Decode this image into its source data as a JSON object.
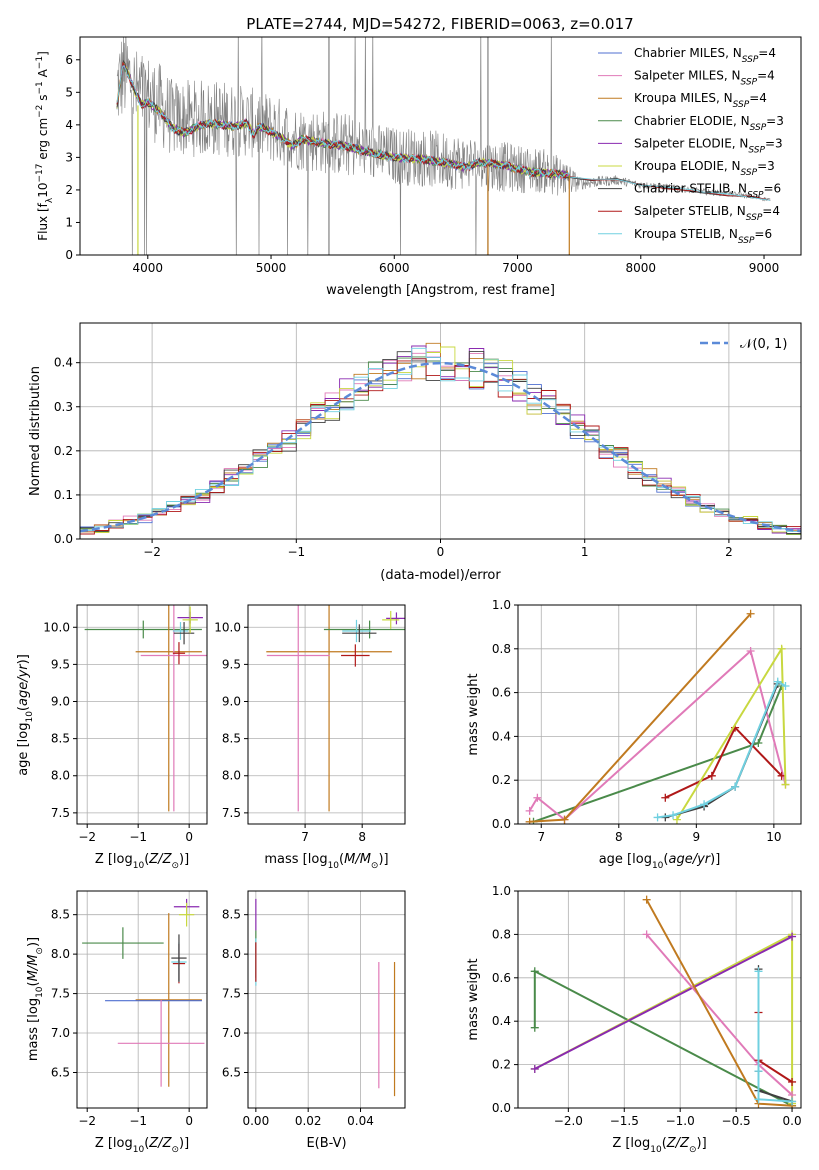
{
  "figure_title": "PLATE=2744, MJD=54272, FIBERID=0063, z=0.017",
  "colors": {
    "chabrier_miles": "#4f6fd0",
    "salpeter_miles": "#e07ab8",
    "kroupa_miles": "#c07a20",
    "chabrier_elodie": "#4a8a4a",
    "salpeter_elodie": "#8a2ab0",
    "kroupa_elodie": "#c8d840",
    "chabrier_stelib": "#404040",
    "salpeter_stelib": "#b01818",
    "kroupa_stelib": "#70d0e0",
    "gaussian": "#5b8ad8",
    "observed": "#808080",
    "grid": "#b0b0b0"
  },
  "chart_data": [
    {
      "id": "spectrum",
      "type": "line",
      "title": "PLATE=2744, MJD=54272, FIBERID=0063, z=0.017",
      "xlabel": "wavelength [Angstrom, rest frame]",
      "ylabel": "Flux [f_λ 10^-17 erg cm^-2 s^-1 A^-1]",
      "xlim": [
        3450,
        9300
      ],
      "ylim": [
        0,
        6.7
      ],
      "xticks": [
        4000,
        5000,
        6000,
        7000,
        8000,
        9000
      ],
      "yticks": [
        0,
        1,
        2,
        3,
        4,
        5,
        6
      ],
      "grid": false,
      "legend_position": "top-right",
      "legend": [
        {
          "label": "Chabrier MILES, N",
          "sub": "SSP",
          "tail": "=4",
          "color_key": "chabrier_miles"
        },
        {
          "label": "Salpeter MILES, N",
          "sub": "SSP",
          "tail": "=4",
          "color_key": "salpeter_miles"
        },
        {
          "label": "Kroupa MILES, N",
          "sub": "SSP",
          "tail": "=4",
          "color_key": "kroupa_miles"
        },
        {
          "label": "Chabrier ELODIE, N",
          "sub": "SSP",
          "tail": "=3",
          "color_key": "chabrier_elodie"
        },
        {
          "label": "Salpeter ELODIE, N",
          "sub": "SSP",
          "tail": "=3",
          "color_key": "salpeter_elodie"
        },
        {
          "label": "Kroupa ELODIE, N",
          "sub": "SSP",
          "tail": "=3",
          "color_key": "kroupa_elodie"
        },
        {
          "label": "Chabrier STELIB, N",
          "sub": "SSP",
          "tail": "=6",
          "color_key": "chabrier_stelib"
        },
        {
          "label": "Salpeter STELIB, N",
          "sub": "SSP",
          "tail": "=4",
          "color_key": "salpeter_stelib"
        },
        {
          "label": "Kroupa STELIB, N",
          "sub": "SSP",
          "tail": "=6",
          "color_key": "kroupa_stelib"
        }
      ],
      "observed_envelope": {
        "x": [
          3750,
          3800,
          3850,
          3900,
          4000,
          4100,
          4200,
          4400,
          4600,
          4800,
          5000,
          5200,
          5400,
          5600,
          5800,
          6000,
          6200,
          6400,
          6600,
          6800,
          7000,
          7200,
          7400,
          7500,
          7800,
          8000,
          8200,
          8500,
          8800,
          9050
        ],
        "y": [
          5.1,
          5.6,
          5.4,
          5.0,
          4.9,
          4.6,
          4.2,
          4.2,
          4.2,
          4.1,
          3.9,
          3.6,
          3.5,
          3.4,
          3.2,
          3.05,
          3.0,
          2.9,
          2.85,
          2.75,
          2.65,
          2.6,
          2.35,
          2.2,
          2.3,
          2.15,
          2.1,
          1.95,
          1.85,
          1.7
        ],
        "noise": [
          1.4,
          1.5,
          1.5,
          1.4,
          1.3,
          1.3,
          1.2,
          1.2,
          1.2,
          1.1,
          1.1,
          1.0,
          1.0,
          1.0,
          0.9,
          0.9,
          0.9,
          0.9,
          0.85,
          0.8,
          0.75,
          0.7,
          0.6,
          0.2,
          0.15,
          0.12,
          0.1,
          0.1,
          0.08,
          0.06
        ]
      },
      "model_x": [
        3750,
        3800,
        3850,
        3900,
        3950,
        4000,
        4100,
        4200,
        4300,
        4400,
        4500,
        4600,
        4700,
        4800,
        4860,
        4900,
        5000,
        5100,
        5175,
        5250,
        5400,
        5600,
        5800,
        6000,
        6200,
        6400,
        6563,
        6700,
        6900,
        7100,
        7300,
        7420
      ],
      "model_y": [
        4.6,
        5.9,
        5.5,
        5.0,
        4.6,
        4.7,
        4.4,
        3.9,
        3.75,
        3.95,
        4.05,
        4.0,
        3.95,
        4.05,
        3.7,
        3.95,
        3.8,
        3.55,
        3.35,
        3.55,
        3.45,
        3.35,
        3.15,
        3.0,
        2.95,
        2.85,
        2.7,
        2.85,
        2.75,
        2.55,
        2.5,
        2.45
      ],
      "stelib_extension_x": [
        7420,
        7600,
        7800,
        8000,
        8200,
        8400,
        8500,
        8700,
        8900,
        9050
      ],
      "stelib_extension_y": [
        2.4,
        2.3,
        2.35,
        2.15,
        2.05,
        2.0,
        1.9,
        1.85,
        1.8,
        1.7
      ]
    },
    {
      "id": "residuals",
      "type": "line",
      "xlabel": "(data-model)/error",
      "ylabel": "Normed distribution",
      "xlim": [
        -2.5,
        2.5
      ],
      "ylim": [
        0,
        0.49
      ],
      "xticks": [
        -2,
        -1,
        0,
        1,
        2
      ],
      "yticks": [
        0.0,
        0.1,
        0.2,
        0.3,
        0.4
      ],
      "grid": true,
      "legend_position": "top-right",
      "legend": [
        {
          "label": "𝒩(0, 1)",
          "color_key": "gaussian",
          "dashed": true
        }
      ],
      "bin_width": 0.1,
      "bin_start": -2.5
    },
    {
      "id": "z-age",
      "type": "scatter",
      "xlabel": "Z [log10(Z/Z⊙)]",
      "ylabel": "age  [log10(age/yr)]",
      "xlim": [
        -2.2,
        0.35
      ],
      "ylim": [
        7.35,
        10.3
      ],
      "xticks": [
        -2,
        -1,
        0
      ],
      "yticks": [
        7.5,
        8.0,
        8.5,
        9.0,
        9.5,
        10.0
      ],
      "grid": true,
      "crosses": [
        {
          "color_key": "chabrier_elodie",
          "x": -0.9,
          "xerr": 1.15,
          "y": 9.97,
          "yerr": 0.12
        },
        {
          "color_key": "kroupa_miles",
          "x": -0.4,
          "xerr": 0.65,
          "y": 9.67,
          "yerr": 2.15
        },
        {
          "color_key": "salpeter_miles",
          "x": -0.3,
          "xerr": 0.65,
          "y": 9.62,
          "yerr": 2.1
        },
        {
          "color_key": "salpeter_stelib",
          "x": -0.2,
          "xerr": 0.12,
          "y": 9.65,
          "yerr": 0.15
        },
        {
          "color_key": "kroupa_stelib",
          "x": -0.17,
          "xerr": 0.15,
          "y": 9.95,
          "yerr": 0.12
        },
        {
          "color_key": "chabrier_stelib",
          "x": -0.1,
          "xerr": 0.2,
          "y": 9.92,
          "yerr": 0.15
        },
        {
          "color_key": "salpeter_elodie",
          "x": 0.02,
          "xerr": 0.25,
          "y": 10.13,
          "yerr": 0.08
        },
        {
          "color_key": "kroupa_elodie",
          "x": 0.02,
          "xerr": 0.15,
          "y": 10.1,
          "yerr": 0.18
        }
      ]
    },
    {
      "id": "mass-age",
      "type": "scatter",
      "xlabel": "mass [log10(M/M⊙)]",
      "ylabel": "",
      "xlim": [
        6.0,
        8.75
      ],
      "ylim": [
        7.35,
        10.3
      ],
      "xticks": [
        7,
        8
      ],
      "yticks": [
        7.5,
        8.0,
        8.5,
        9.0,
        9.5,
        10.0
      ],
      "grid": true,
      "crosses": [
        {
          "color_key": "kroupa_miles",
          "x": 7.42,
          "xerr": 1.1,
          "y": 9.67,
          "yerr": 2.15
        },
        {
          "color_key": "salpeter_miles",
          "x": 6.88,
          "xerr": 0.55,
          "y": 9.62,
          "yerr": 2.1
        },
        {
          "color_key": "salpeter_stelib",
          "x": 7.88,
          "xerr": 0.25,
          "y": 9.62,
          "yerr": 0.15
        },
        {
          "color_key": "chabrier_elodie",
          "x": 8.13,
          "xerr": 0.8,
          "y": 9.97,
          "yerr": 0.12
        },
        {
          "color_key": "kroupa_stelib",
          "x": 7.9,
          "xerr": 0.25,
          "y": 9.95,
          "yerr": 0.15
        },
        {
          "color_key": "chabrier_stelib",
          "x": 7.95,
          "xerr": 0.3,
          "y": 9.92,
          "yerr": 0.12
        },
        {
          "color_key": "salpeter_elodie",
          "x": 8.6,
          "xerr": 0.18,
          "y": 10.12,
          "yerr": 0.08
        },
        {
          "color_key": "kroupa_elodie",
          "x": 8.5,
          "xerr": 0.15,
          "y": 10.1,
          "yerr": 0.12
        }
      ]
    },
    {
      "id": "weight-age",
      "type": "line",
      "xlabel": "age  [log10(age/yr)]",
      "ylabel": "mass weight",
      "xlim": [
        6.7,
        10.35
      ],
      "ylim": [
        0.0,
        1.0
      ],
      "xticks": [
        7,
        8,
        9,
        10
      ],
      "yticks": [
        0.0,
        0.2,
        0.4,
        0.6,
        0.8,
        1.0
      ],
      "grid": true,
      "series": [
        {
          "color_key": "chabrier_elodie",
          "x": [
            6.9,
            9.8,
            10.1
          ],
          "y": [
            0.01,
            0.37,
            0.63
          ]
        },
        {
          "color_key": "salpeter_miles",
          "x": [
            6.85,
            6.95,
            7.3,
            9.7,
            10.15
          ],
          "y": [
            0.06,
            0.12,
            0.02,
            0.79,
            0.18
          ]
        },
        {
          "color_key": "kroupa_miles",
          "x": [
            6.85,
            7.3,
            9.7
          ],
          "y": [
            0.01,
            0.02,
            0.96
          ]
        },
        {
          "color_key": "salpeter_stelib",
          "x": [
            8.6,
            9.2,
            9.5,
            10.1
          ],
          "y": [
            0.12,
            0.22,
            0.44,
            0.22
          ]
        },
        {
          "color_key": "kroupa_elodie",
          "x": [
            8.75,
            10.1,
            10.15
          ],
          "y": [
            0.02,
            0.8,
            0.18
          ]
        },
        {
          "color_key": "chabrier_stelib",
          "x": [
            8.6,
            9.1,
            9.5,
            10.05
          ],
          "y": [
            0.03,
            0.08,
            0.17,
            0.64
          ]
        },
        {
          "color_key": "kroupa_stelib",
          "x": [
            8.5,
            8.7,
            9.1,
            9.5,
            10.05,
            10.15
          ],
          "y": [
            0.03,
            0.04,
            0.09,
            0.17,
            0.65,
            0.63
          ]
        }
      ]
    },
    {
      "id": "z-mass",
      "type": "scatter",
      "xlabel": "Z [log10(Z/Z⊙)]",
      "ylabel": "mass [log10(M/M⊙)]",
      "xlim": [
        -2.2,
        0.35
      ],
      "ylim": [
        6.05,
        8.8
      ],
      "xticks": [
        -2,
        -1,
        0
      ],
      "yticks": [
        6.5,
        7.0,
        7.5,
        8.0,
        8.5
      ],
      "grid": true,
      "crosses": [
        {
          "color_key": "chabrier_elodie",
          "x": -1.3,
          "xerr": 0.8,
          "y": 8.14,
          "yerr": 0.2
        },
        {
          "color_key": "kroupa_miles",
          "x": -0.4,
          "xerr": 0.65,
          "y": 7.42,
          "yerr": 1.1
        },
        {
          "color_key": "chabrier_miles",
          "x": -0.7,
          "xerr": 0.95,
          "y": 7.41,
          "yerr": 0.0
        },
        {
          "color_key": "salpeter_miles",
          "x": -0.55,
          "xerr": 0.85,
          "y": 6.87,
          "yerr": 0.55
        },
        {
          "color_key": "salpeter_stelib",
          "x": -0.2,
          "xerr": 0.12,
          "y": 7.88,
          "yerr": 0.25
        },
        {
          "color_key": "kroupa_stelib",
          "x": -0.2,
          "xerr": 0.15,
          "y": 7.9,
          "yerr": 0.25
        },
        {
          "color_key": "chabrier_stelib",
          "x": -0.2,
          "xerr": 0.15,
          "y": 7.95,
          "yerr": 0.3
        },
        {
          "color_key": "salpeter_elodie",
          "x": -0.05,
          "xerr": 0.25,
          "y": 8.6,
          "yerr": 0.1
        },
        {
          "color_key": "kroupa_elodie",
          "x": -0.05,
          "xerr": 0.15,
          "y": 8.5,
          "yerr": 0.15
        }
      ]
    },
    {
      "id": "ebv-mass",
      "type": "scatter",
      "xlabel": "E(B-V)",
      "ylabel": "",
      "xlim": [
        -0.003,
        0.057
      ],
      "ylim": [
        6.05,
        8.8
      ],
      "xticks": [
        0.0,
        0.02,
        0.04
      ],
      "xticklabels": [
        "0.00",
        "0.02",
        "0.04"
      ],
      "yticks": [
        6.5,
        7.0,
        7.5,
        8.0,
        8.5
      ],
      "grid": true,
      "crosses": [
        {
          "color_key": "kroupa_miles",
          "x": 0.053,
          "xerr": 0.0,
          "y": 7.05,
          "yerr": 0.85
        },
        {
          "color_key": "salpeter_miles",
          "x": 0.047,
          "xerr": 0.0,
          "y": 7.1,
          "yerr": 0.8
        },
        {
          "color_key": "chabrier_elodie",
          "x": 0.0,
          "xerr": 0.0,
          "y": 8.0,
          "yerr": 0.3
        },
        {
          "color_key": "salpeter_elodie",
          "x": 0.0,
          "xerr": 0.0,
          "y": 8.5,
          "yerr": 0.2
        },
        {
          "color_key": "kroupa_stelib",
          "x": 0.0,
          "xerr": 0.0,
          "y": 7.9,
          "yerr": 0.3
        },
        {
          "color_key": "salpeter_stelib",
          "x": 0.0,
          "xerr": 0.0,
          "y": 7.9,
          "yerr": 0.25
        }
      ]
    },
    {
      "id": "weight-z",
      "type": "line",
      "xlabel": "Z [log10(Z/Z⊙)]",
      "ylabel": "mass weight",
      "xlim": [
        -2.45,
        0.08
      ],
      "ylim": [
        0.0,
        1.0
      ],
      "xticks": [
        -2.0,
        -1.5,
        -1.0,
        -0.5,
        0.0
      ],
      "yticks": [
        0.0,
        0.2,
        0.4,
        0.6,
        0.8,
        1.0
      ],
      "grid": true,
      "series": [
        {
          "color_key": "chabrier_elodie",
          "x": [
            -2.3,
            -2.3,
            0.0
          ],
          "y": [
            0.37,
            0.63,
            0.01
          ]
        },
        {
          "color_key": "kroupa_elodie",
          "x": [
            -2.3,
            0.0,
            0.0
          ],
          "y": [
            0.18,
            0.8,
            0.02
          ]
        },
        {
          "color_key": "salpeter_elodie",
          "x": [
            -2.3,
            0.0
          ],
          "y": [
            0.18,
            0.79
          ]
        },
        {
          "color_key": "salpeter_miles",
          "x": [
            -1.3,
            -0.3,
            0.0
          ],
          "y": [
            0.8,
            0.2,
            0.06
          ]
        },
        {
          "color_key": "kroupa_miles",
          "x": [
            -1.3,
            -0.3,
            0.0
          ],
          "y": [
            0.96,
            0.02,
            0.01
          ]
        },
        {
          "color_key": "salpeter_stelib",
          "x": [
            -0.3,
            -0.3,
            0.0
          ],
          "y": [
            0.44,
            0.22,
            0.12
          ]
        },
        {
          "color_key": "chabrier_stelib",
          "x": [
            -0.3,
            -0.3,
            -0.3,
            0.0
          ],
          "y": [
            0.64,
            0.17,
            0.08,
            0.03
          ]
        },
        {
          "color_key": "kroupa_stelib",
          "x": [
            -0.3,
            -0.3,
            -0.3,
            0.0
          ],
          "y": [
            0.63,
            0.17,
            0.04,
            0.03
          ]
        }
      ]
    }
  ]
}
